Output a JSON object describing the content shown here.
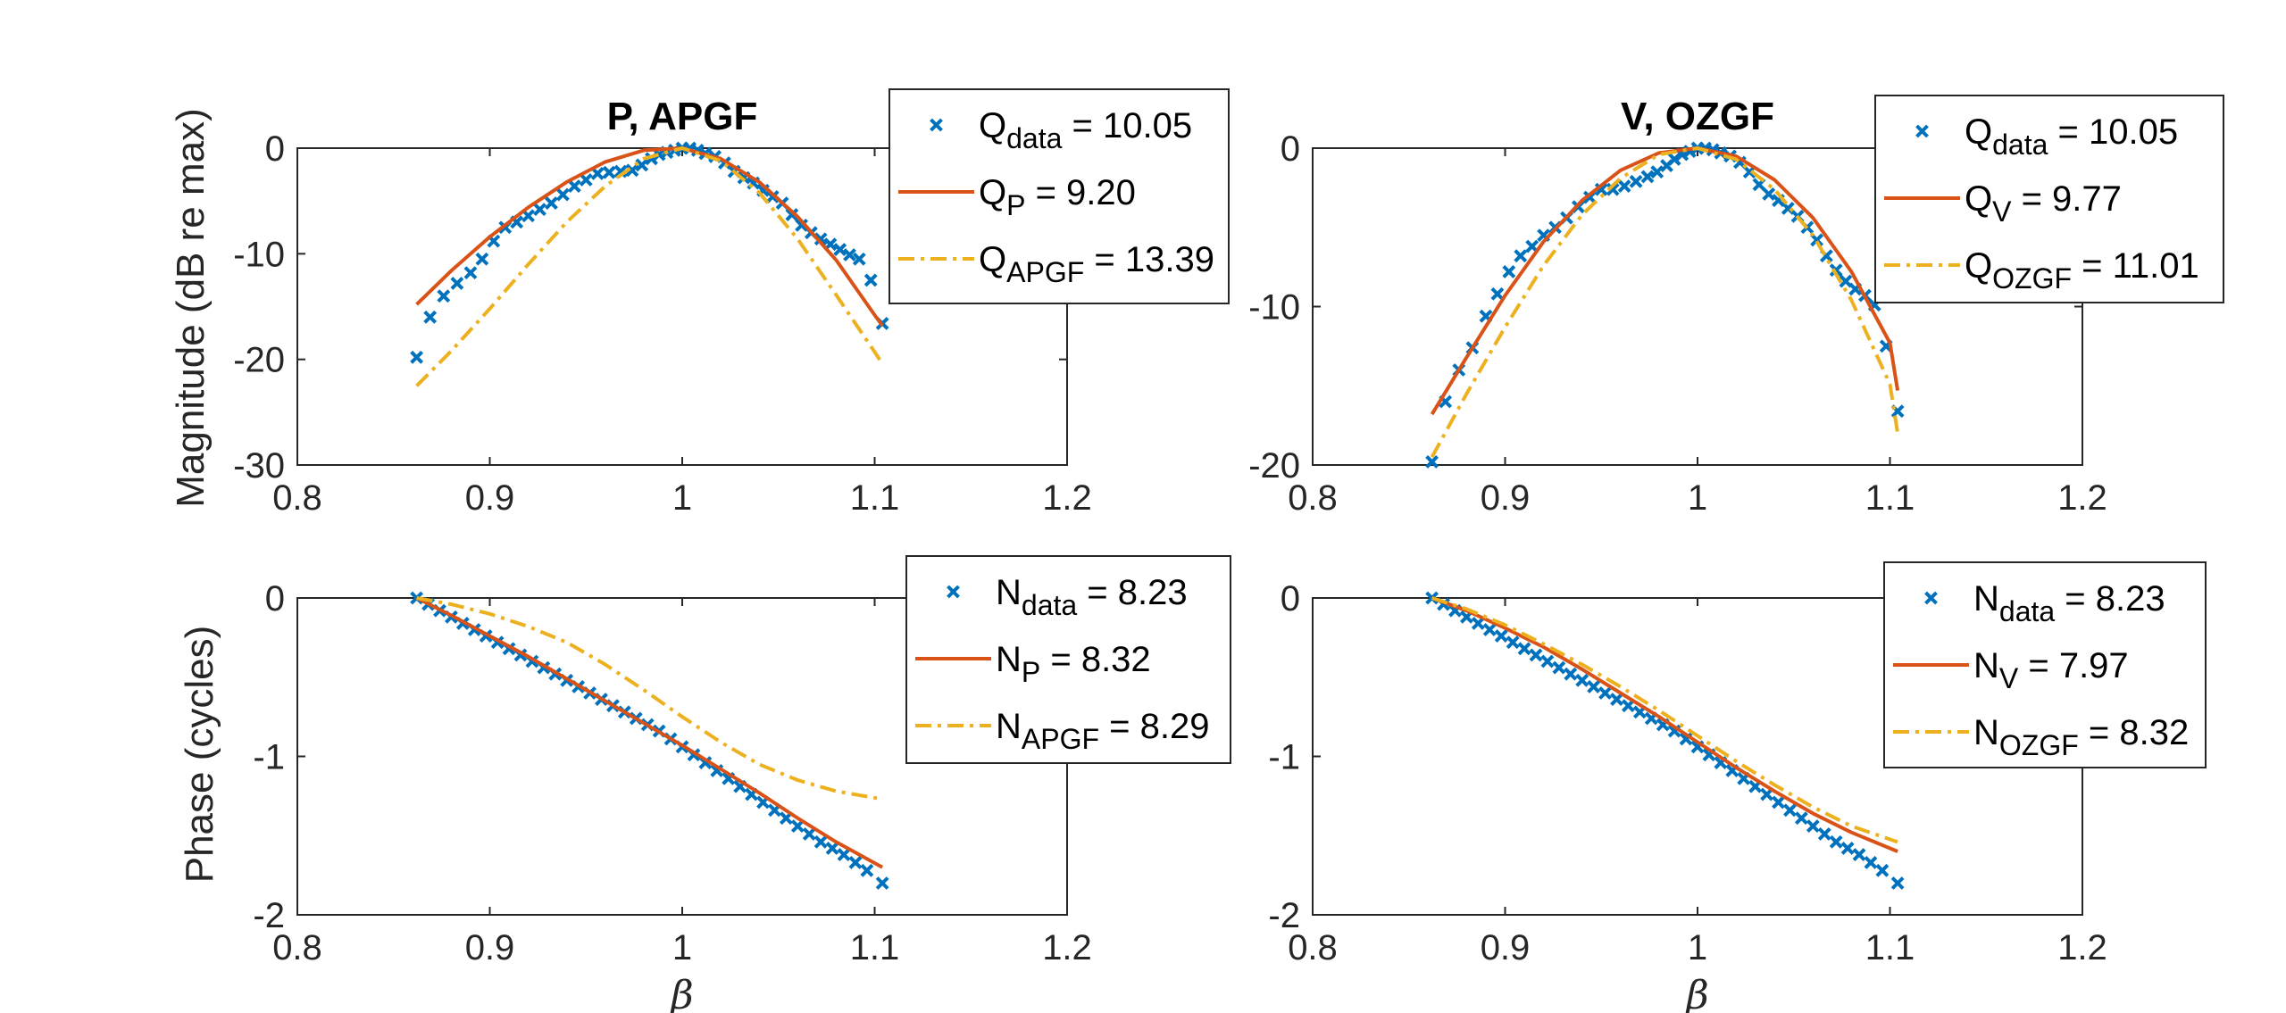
{
  "figure": {
    "xlabel_symbol": "β",
    "ylabel_magnitude": "Magnitude (dB re max)",
    "ylabel_phase": "Phase (cycles)"
  },
  "colors": {
    "data": "#0072BD",
    "model": "#D95319",
    "filter": "#EDB120",
    "axis": "#262626"
  },
  "chart_data": [
    {
      "id": "P-mag",
      "type": "line",
      "title": "P, APGF",
      "xlabel": "",
      "ylabel": "Magnitude (dB re max)",
      "xlim": [
        0.8,
        1.2
      ],
      "ylim": [
        -30,
        0
      ],
      "xticks": [
        "0.8",
        "0.9",
        "1",
        "1.1",
        "1.2"
      ],
      "yticks": [
        "0",
        "-10",
        "-20",
        "-30"
      ],
      "legend": [
        {
          "base": "Q",
          "sub": "data",
          "rest": " = 10.05"
        },
        {
          "base": "Q",
          "sub": "P",
          "rest": "    = 9.20"
        },
        {
          "base": "Q",
          "sub": "APGF",
          "rest": " = 13.39"
        }
      ],
      "series": [
        {
          "name": "data",
          "style": "marker-x",
          "x": [
            0.862,
            0.869,
            0.876,
            0.883,
            0.89,
            0.896,
            0.902,
            0.908,
            0.914,
            0.92,
            0.926,
            0.932,
            0.938,
            0.944,
            0.95,
            0.956,
            0.962,
            0.968,
            0.974,
            0.979,
            0.984,
            0.988,
            0.992,
            0.996,
            1.0,
            1.004,
            1.008,
            1.012,
            1.017,
            1.022,
            1.027,
            1.032,
            1.037,
            1.042,
            1.047,
            1.052,
            1.057,
            1.062,
            1.067,
            1.072,
            1.077,
            1.082,
            1.087,
            1.092,
            1.098,
            1.104
          ],
          "y": [
            -19.8,
            -16.0,
            -14.0,
            -12.8,
            -11.8,
            -10.5,
            -8.8,
            -7.5,
            -7.0,
            -6.4,
            -5.8,
            -5.2,
            -4.4,
            -3.6,
            -3.0,
            -2.4,
            -2.3,
            -2.2,
            -2.1,
            -1.6,
            -1.0,
            -0.6,
            -0.4,
            -0.2,
            0.0,
            0.0,
            -0.2,
            -0.5,
            -0.8,
            -1.4,
            -2.2,
            -2.8,
            -3.3,
            -4.0,
            -4.6,
            -5.2,
            -6.3,
            -7.3,
            -8.0,
            -8.6,
            -9.1,
            -9.6,
            -10.1,
            -10.5,
            -12.5,
            -16.6
          ]
        },
        {
          "name": "model",
          "style": "solid",
          "x": [
            0.862,
            0.88,
            0.9,
            0.92,
            0.94,
            0.96,
            0.98,
            1.0,
            1.02,
            1.04,
            1.06,
            1.08,
            1.1,
            1.104
          ],
          "y": [
            -14.8,
            -11.6,
            -8.4,
            -5.6,
            -3.2,
            -1.3,
            -0.2,
            0.0,
            -1.0,
            -3.2,
            -6.5,
            -10.6,
            -15.8,
            -16.8
          ]
        },
        {
          "name": "filter",
          "style": "dashdot",
          "x": [
            0.862,
            0.88,
            0.9,
            0.92,
            0.94,
            0.96,
            0.98,
            1.0,
            1.02,
            1.04,
            1.06,
            1.08,
            1.1,
            1.104
          ],
          "y": [
            -22.5,
            -19.2,
            -15.2,
            -11.0,
            -7.0,
            -3.6,
            -1.0,
            0.0,
            -1.2,
            -4.2,
            -8.6,
            -13.9,
            -19.3,
            -20.4
          ]
        }
      ]
    },
    {
      "id": "V-mag",
      "type": "line",
      "title": "V, OZGF",
      "xlabel": "",
      "ylabel": "",
      "xlim": [
        0.8,
        1.2
      ],
      "ylim": [
        -20,
        0
      ],
      "xticks": [
        "0.8",
        "0.9",
        "1",
        "1.1",
        "1.2"
      ],
      "yticks": [
        "0",
        "-10",
        "-20"
      ],
      "legend": [
        {
          "base": "Q",
          "sub": "data",
          "rest": " = 10.05"
        },
        {
          "base": "Q",
          "sub": "V",
          "rest": "    = 9.77"
        },
        {
          "base": "Q",
          "sub": "OZGF",
          "rest": " = 11.01"
        }
      ],
      "series": [
        {
          "name": "data",
          "style": "marker-x",
          "x": [
            0.862,
            0.869,
            0.876,
            0.883,
            0.89,
            0.896,
            0.902,
            0.908,
            0.914,
            0.92,
            0.926,
            0.932,
            0.938,
            0.944,
            0.95,
            0.956,
            0.962,
            0.968,
            0.974,
            0.979,
            0.984,
            0.988,
            0.992,
            0.996,
            1.0,
            1.004,
            1.008,
            1.012,
            1.017,
            1.022,
            1.027,
            1.032,
            1.037,
            1.042,
            1.047,
            1.052,
            1.057,
            1.062,
            1.067,
            1.072,
            1.077,
            1.082,
            1.087,
            1.092,
            1.098,
            1.104
          ],
          "y": [
            -19.8,
            -16.0,
            -14.0,
            -12.6,
            -10.6,
            -9.2,
            -7.8,
            -6.8,
            -6.2,
            -5.5,
            -5.0,
            -4.4,
            -3.7,
            -3.1,
            -2.6,
            -2.6,
            -2.4,
            -2.1,
            -1.8,
            -1.5,
            -1.1,
            -0.7,
            -0.4,
            -0.2,
            0.0,
            0.0,
            -0.1,
            -0.3,
            -0.5,
            -0.9,
            -1.5,
            -2.3,
            -2.9,
            -3.3,
            -3.8,
            -4.3,
            -5.0,
            -5.8,
            -6.8,
            -7.7,
            -8.4,
            -8.9,
            -9.3,
            -9.9,
            -12.5,
            -16.6
          ]
        },
        {
          "name": "model",
          "style": "solid",
          "x": [
            0.862,
            0.88,
            0.9,
            0.92,
            0.94,
            0.96,
            0.98,
            1.0,
            1.02,
            1.04,
            1.06,
            1.08,
            1.1,
            1.104
          ],
          "y": [
            -16.8,
            -13.2,
            -9.3,
            -5.9,
            -3.3,
            -1.4,
            -0.3,
            0.0,
            -0.5,
            -2.0,
            -4.4,
            -7.8,
            -12.3,
            -15.3
          ]
        },
        {
          "name": "filter",
          "style": "dashdot",
          "x": [
            0.862,
            0.88,
            0.9,
            0.92,
            0.94,
            0.96,
            0.98,
            1.0,
            1.02,
            1.04,
            1.06,
            1.08,
            1.1,
            1.104
          ],
          "y": [
            -19.5,
            -15.5,
            -11.3,
            -7.4,
            -4.2,
            -1.9,
            -0.4,
            0.0,
            -0.7,
            -2.6,
            -5.5,
            -9.6,
            -14.9,
            -18.0
          ]
        }
      ]
    },
    {
      "id": "P-phase",
      "type": "line",
      "title": "",
      "xlabel": "β",
      "ylabel": "Phase (cycles)",
      "xlim": [
        0.8,
        1.2
      ],
      "ylim": [
        -2,
        0
      ],
      "xticks": [
        "0.8",
        "0.9",
        "1",
        "1.1",
        "1.2"
      ],
      "yticks": [
        "0",
        "-1",
        "-2"
      ],
      "legend": [
        {
          "base": "N",
          "sub": "data",
          "rest": " = 8.23"
        },
        {
          "base": "N",
          "sub": "P",
          "rest": "    = 8.32"
        },
        {
          "base": "N",
          "sub": "APGF",
          "rest": " = 8.29"
        }
      ],
      "series": [
        {
          "name": "data",
          "style": "marker-x",
          "x": [
            0.862,
            0.868,
            0.874,
            0.88,
            0.886,
            0.892,
            0.898,
            0.904,
            0.91,
            0.916,
            0.922,
            0.928,
            0.934,
            0.94,
            0.946,
            0.952,
            0.958,
            0.964,
            0.97,
            0.976,
            0.982,
            0.988,
            0.994,
            1.0,
            1.006,
            1.012,
            1.018,
            1.024,
            1.03,
            1.036,
            1.042,
            1.048,
            1.054,
            1.06,
            1.066,
            1.072,
            1.078,
            1.084,
            1.09,
            1.096,
            1.104
          ],
          "y": [
            0.0,
            -0.04,
            -0.08,
            -0.12,
            -0.16,
            -0.2,
            -0.24,
            -0.28,
            -0.32,
            -0.36,
            -0.4,
            -0.44,
            -0.48,
            -0.52,
            -0.56,
            -0.6,
            -0.64,
            -0.68,
            -0.72,
            -0.76,
            -0.8,
            -0.84,
            -0.89,
            -0.94,
            -0.99,
            -1.04,
            -1.09,
            -1.14,
            -1.19,
            -1.24,
            -1.29,
            -1.34,
            -1.39,
            -1.44,
            -1.49,
            -1.54,
            -1.58,
            -1.62,
            -1.67,
            -1.72,
            -1.8
          ]
        },
        {
          "name": "model",
          "style": "solid",
          "x": [
            0.862,
            0.88,
            0.9,
            0.92,
            0.94,
            0.96,
            0.98,
            1.0,
            1.02,
            1.04,
            1.06,
            1.08,
            1.104
          ],
          "y": [
            0.0,
            -0.11,
            -0.24,
            -0.37,
            -0.51,
            -0.65,
            -0.79,
            -0.93,
            -1.08,
            -1.23,
            -1.39,
            -1.54,
            -1.7
          ]
        },
        {
          "name": "filter",
          "style": "dashdot",
          "x": [
            0.862,
            0.88,
            0.9,
            0.92,
            0.94,
            0.96,
            0.98,
            1.0,
            1.02,
            1.04,
            1.06,
            1.08,
            1.104
          ],
          "y": [
            0.0,
            -0.04,
            -0.1,
            -0.18,
            -0.28,
            -0.42,
            -0.58,
            -0.75,
            -0.91,
            -1.05,
            -1.15,
            -1.22,
            -1.27
          ]
        }
      ]
    },
    {
      "id": "V-phase",
      "type": "line",
      "title": "",
      "xlabel": "β",
      "ylabel": "",
      "xlim": [
        0.8,
        1.2
      ],
      "ylim": [
        -2,
        0
      ],
      "xticks": [
        "0.8",
        "0.9",
        "1",
        "1.1",
        "1.2"
      ],
      "yticks": [
        "0",
        "-1",
        "-2"
      ],
      "legend": [
        {
          "base": "N",
          "sub": "data",
          "rest": " = 8.23"
        },
        {
          "base": "N",
          "sub": "V",
          "rest": "    = 7.97"
        },
        {
          "base": "N",
          "sub": "OZGF",
          "rest": " = 8.32"
        }
      ],
      "series": [
        {
          "name": "data",
          "style": "marker-x",
          "x": [
            0.862,
            0.868,
            0.874,
            0.88,
            0.886,
            0.892,
            0.898,
            0.904,
            0.91,
            0.916,
            0.922,
            0.928,
            0.934,
            0.94,
            0.946,
            0.952,
            0.958,
            0.964,
            0.97,
            0.976,
            0.982,
            0.988,
            0.994,
            1.0,
            1.006,
            1.012,
            1.018,
            1.024,
            1.03,
            1.036,
            1.042,
            1.048,
            1.054,
            1.06,
            1.066,
            1.072,
            1.078,
            1.084,
            1.09,
            1.096,
            1.104
          ],
          "y": [
            0.0,
            -0.04,
            -0.08,
            -0.12,
            -0.16,
            -0.2,
            -0.24,
            -0.28,
            -0.32,
            -0.36,
            -0.4,
            -0.44,
            -0.48,
            -0.52,
            -0.56,
            -0.6,
            -0.64,
            -0.68,
            -0.72,
            -0.76,
            -0.8,
            -0.84,
            -0.89,
            -0.94,
            -0.99,
            -1.04,
            -1.09,
            -1.14,
            -1.19,
            -1.24,
            -1.29,
            -1.34,
            -1.39,
            -1.44,
            -1.49,
            -1.54,
            -1.58,
            -1.62,
            -1.67,
            -1.72,
            -1.8
          ]
        },
        {
          "name": "model",
          "style": "solid",
          "x": [
            0.862,
            0.88,
            0.9,
            0.92,
            0.94,
            0.96,
            0.98,
            1.0,
            1.02,
            1.04,
            1.06,
            1.08,
            1.104
          ],
          "y": [
            0.0,
            -0.08,
            -0.19,
            -0.31,
            -0.45,
            -0.6,
            -0.75,
            -0.91,
            -1.07,
            -1.22,
            -1.36,
            -1.48,
            -1.6
          ]
        },
        {
          "name": "filter",
          "style": "dashdot",
          "x": [
            0.862,
            0.88,
            0.9,
            0.92,
            0.94,
            0.96,
            0.98,
            1.0,
            1.02,
            1.04,
            1.06,
            1.08,
            1.104
          ],
          "y": [
            0.0,
            -0.07,
            -0.17,
            -0.29,
            -0.42,
            -0.56,
            -0.71,
            -0.87,
            -1.03,
            -1.18,
            -1.32,
            -1.44,
            -1.54
          ]
        }
      ]
    }
  ]
}
